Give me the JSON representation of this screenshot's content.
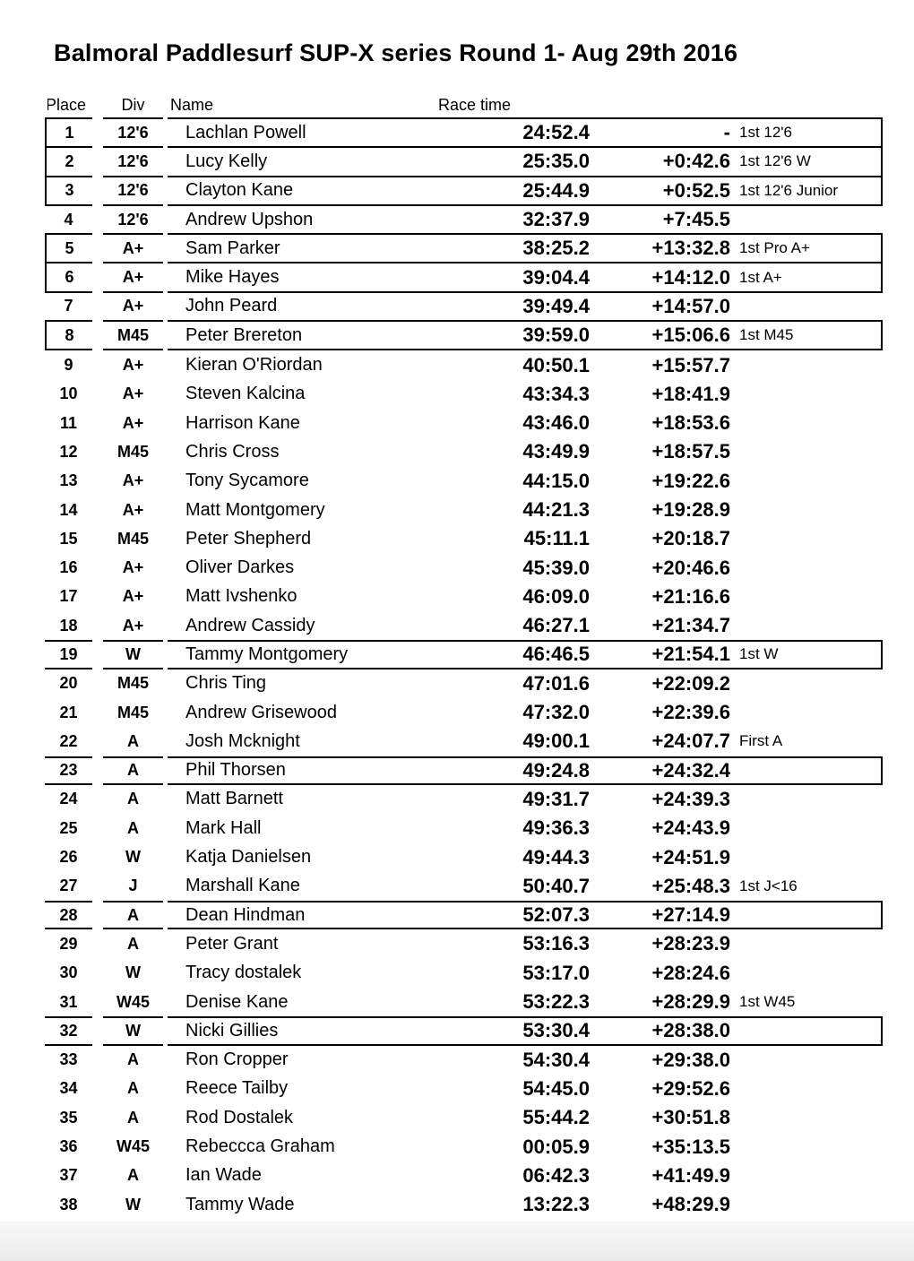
{
  "page": {
    "title": "Balmoral Paddlesurf SUP-X series Round 1- Aug 29th 2016"
  },
  "table": {
    "headers": {
      "place": "Place",
      "div": "Div",
      "name": "Name",
      "race_time": "Race time"
    },
    "rows": [
      {
        "place": "1",
        "div": "12'6",
        "name": "Lachlan Powell",
        "time": "24:52.4",
        "diff": "-",
        "note": "1st 12'6",
        "boxed": true
      },
      {
        "place": "2",
        "div": "12'6",
        "name": "Lucy Kelly",
        "time": "25:35.0",
        "diff": "+0:42.6",
        "note": "1st 12'6 W",
        "boxed": true
      },
      {
        "place": "3",
        "div": "12'6",
        "name": "Clayton Kane",
        "time": "25:44.9",
        "diff": "+0:52.5",
        "note": "1st 12'6 Junior",
        "boxed": true
      },
      {
        "place": "4",
        "div": "12'6",
        "name": "Andrew Upshon",
        "time": "32:37.9",
        "diff": "+7:45.5",
        "note": "",
        "boxed": false
      },
      {
        "place": "5",
        "div": "A+",
        "name": "Sam Parker",
        "time": "38:25.2",
        "diff": "+13:32.8",
        "note": "1st Pro A+",
        "boxed": true
      },
      {
        "place": "6",
        "div": "A+",
        "name": "Mike Hayes",
        "time": "39:04.4",
        "diff": "+14:12.0",
        "note": "1st A+",
        "boxed": true
      },
      {
        "place": "7",
        "div": "A+",
        "name": "John Peard",
        "time": "39:49.4",
        "diff": "+14:57.0",
        "note": "",
        "boxed": false
      },
      {
        "place": "8",
        "div": "M45",
        "name": "Peter Brereton",
        "time": "39:59.0",
        "diff": "+15:06.6",
        "note": "1st M45",
        "boxed": true
      },
      {
        "place": "9",
        "div": "A+",
        "name": "Kieran O'Riordan",
        "time": "40:50.1",
        "diff": "+15:57.7",
        "note": "",
        "boxed": false
      },
      {
        "place": "10",
        "div": "A+",
        "name": "Steven Kalcina",
        "time": "43:34.3",
        "diff": "+18:41.9",
        "note": "",
        "boxed": false
      },
      {
        "place": "11",
        "div": "A+",
        "name": "Harrison Kane",
        "time": "43:46.0",
        "diff": "+18:53.6",
        "note": "",
        "boxed": false
      },
      {
        "place": "12",
        "div": "M45",
        "name": "Chris Cross",
        "time": "43:49.9",
        "diff": "+18:57.5",
        "note": "",
        "boxed": false
      },
      {
        "place": "13",
        "div": "A+",
        "name": "Tony Sycamore",
        "time": "44:15.0",
        "diff": "+19:22.6",
        "note": "",
        "boxed": false
      },
      {
        "place": "14",
        "div": "A+",
        "name": "Matt Montgomery",
        "time": "44:21.3",
        "diff": "+19:28.9",
        "note": "",
        "boxed": false
      },
      {
        "place": "15",
        "div": "M45",
        "name": "Peter Shepherd",
        "time": "45:11.1",
        "diff": "+20:18.7",
        "note": "",
        "boxed": false
      },
      {
        "place": "16",
        "div": "A+",
        "name": "Oliver Darkes",
        "time": "45:39.0",
        "diff": "+20:46.6",
        "note": "",
        "boxed": false
      },
      {
        "place": "17",
        "div": "A+",
        "name": "Matt Ivshenko",
        "time": "46:09.0",
        "diff": "+21:16.6",
        "note": "",
        "boxed": false
      },
      {
        "place": "18",
        "div": "A+",
        "name": "Andrew Cassidy",
        "time": "46:27.1",
        "diff": "+21:34.7",
        "note": "",
        "boxed": false
      },
      {
        "place": "19",
        "div": "W",
        "name": "Tammy Montgomery",
        "time": "46:46.5",
        "diff": "+21:54.1",
        "note": "1st W",
        "boxed": true
      },
      {
        "place": "20",
        "div": "M45",
        "name": "Chris Ting",
        "time": "47:01.6",
        "diff": "+22:09.2",
        "note": "",
        "boxed": false
      },
      {
        "place": "21",
        "div": "M45",
        "name": "Andrew Grisewood",
        "time": "47:32.0",
        "diff": "+22:39.6",
        "note": "",
        "boxed": false
      },
      {
        "place": "22",
        "div": "A",
        "name": "Josh Mcknight",
        "time": "49:00.1",
        "diff": "+24:07.7",
        "note": "First A",
        "boxed": false
      },
      {
        "place": "23",
        "div": "A",
        "name": "Phil Thorsen",
        "time": "49:24.8",
        "diff": "+24:32.4",
        "note": "",
        "boxed": true
      },
      {
        "place": "24",
        "div": "A",
        "name": "Matt Barnett",
        "time": "49:31.7",
        "diff": "+24:39.3",
        "note": "",
        "boxed": false
      },
      {
        "place": "25",
        "div": "A",
        "name": "Mark Hall",
        "time": "49:36.3",
        "diff": "+24:43.9",
        "note": "",
        "boxed": false
      },
      {
        "place": "26",
        "div": "W",
        "name": "Katja Danielsen",
        "time": "49:44.3",
        "diff": "+24:51.9",
        "note": "",
        "boxed": false
      },
      {
        "place": "27",
        "div": "J",
        "name": "Marshall Kane",
        "time": "50:40.7",
        "diff": "+25:48.3",
        "note": "1st J<16",
        "boxed": false
      },
      {
        "place": "28",
        "div": "A",
        "name": "Dean Hindman",
        "time": "52:07.3",
        "diff": "+27:14.9",
        "note": "",
        "boxed": true
      },
      {
        "place": "29",
        "div": "A",
        "name": "Peter Grant",
        "time": "53:16.3",
        "diff": "+28:23.9",
        "note": "",
        "boxed": false
      },
      {
        "place": "30",
        "div": "W",
        "name": "Tracy dostalek",
        "time": "53:17.0",
        "diff": "+28:24.6",
        "note": "",
        "boxed": false
      },
      {
        "place": "31",
        "div": "W45",
        "name": "Denise Kane",
        "time": "53:22.3",
        "diff": "+28:29.9",
        "note": "1st W45",
        "boxed": false
      },
      {
        "place": "32",
        "div": "W",
        "name": "Nicki Gillies",
        "time": "53:30.4",
        "diff": "+28:38.0",
        "note": "",
        "boxed": true
      },
      {
        "place": "33",
        "div": "A",
        "name": "Ron Cropper",
        "time": "54:30.4",
        "diff": "+29:38.0",
        "note": "",
        "boxed": false
      },
      {
        "place": "34",
        "div": "A",
        "name": "Reece Tailby",
        "time": "54:45.0",
        "diff": "+29:52.6",
        "note": "",
        "boxed": false
      },
      {
        "place": "35",
        "div": "A",
        "name": "Rod Dostalek",
        "time": "55:44.2",
        "diff": "+30:51.8",
        "note": "",
        "boxed": false
      },
      {
        "place": "36",
        "div": "W45",
        "name": "Rebeccca Graham",
        "time": "00:05.9",
        "diff": "+35:13.5",
        "note": "",
        "boxed": false
      },
      {
        "place": "37",
        "div": "A",
        "name": "Ian Wade",
        "time": "06:42.3",
        "diff": "+41:49.9",
        "note": "",
        "boxed": false
      },
      {
        "place": "38",
        "div": "W",
        "name": "Tammy Wade",
        "time": "13:22.3",
        "diff": "+48:29.9",
        "note": "",
        "boxed": false
      }
    ]
  },
  "colors": {
    "text": "#000000",
    "border": "#000000",
    "footer_top": "#f8f8f8",
    "footer_bottom": "#ebebeb"
  }
}
